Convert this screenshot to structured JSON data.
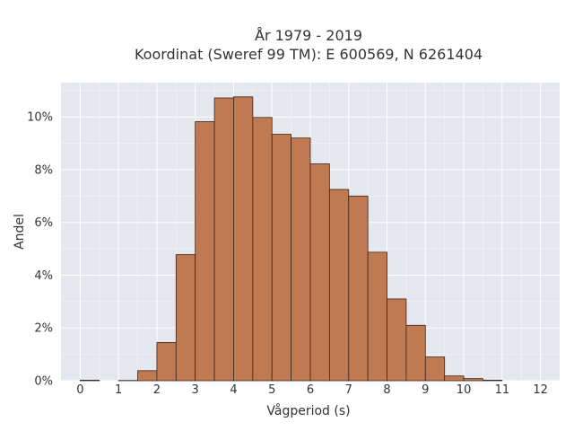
{
  "chart_data": {
    "type": "bar",
    "title_lines": [
      "År 1979 - 2019",
      "Koordinat (Sweref 99 TM): E 600569, N 6261404"
    ],
    "xlabel": "Vågperiod (s)",
    "ylabel": "Andel",
    "xlim": [
      -0.5,
      12.5
    ],
    "ylim": [
      0,
      0.113
    ],
    "x_ticks": [
      0,
      1,
      2,
      3,
      4,
      5,
      6,
      7,
      8,
      9,
      10,
      11,
      12
    ],
    "x_tick_labels": [
      "0",
      "1",
      "2",
      "3",
      "4",
      "5",
      "6",
      "7",
      "8",
      "9",
      "10",
      "11",
      "12"
    ],
    "y_ticks": [
      0,
      0.02,
      0.04,
      0.06,
      0.08,
      0.1
    ],
    "y_tick_labels": [
      "0%",
      "2%",
      "4%",
      "6%",
      "8%",
      "10%"
    ],
    "bin_width": 0.5,
    "bin_starts": [
      0,
      0.5,
      1,
      1.5,
      2,
      2.5,
      3,
      3.5,
      4,
      4.5,
      5,
      5.5,
      6,
      6.5,
      7,
      7.5,
      8,
      8.5,
      9,
      9.5,
      10,
      10.5,
      11,
      11.5
    ],
    "values": [
      0.0002,
      0,
      0.0001,
      0.0038,
      0.0145,
      0.0478,
      0.0982,
      0.1072,
      0.1076,
      0.0998,
      0.0934,
      0.092,
      0.0822,
      0.0725,
      0.07,
      0.0487,
      0.031,
      0.021,
      0.009,
      0.0018,
      0.0008,
      0.0002,
      0,
      0
    ],
    "bar_color": "#c07a52",
    "bar_edge_color": "#3d2418",
    "grid": true,
    "plot_bg": "#e5e7ef",
    "grid_color": "#ffffff"
  }
}
